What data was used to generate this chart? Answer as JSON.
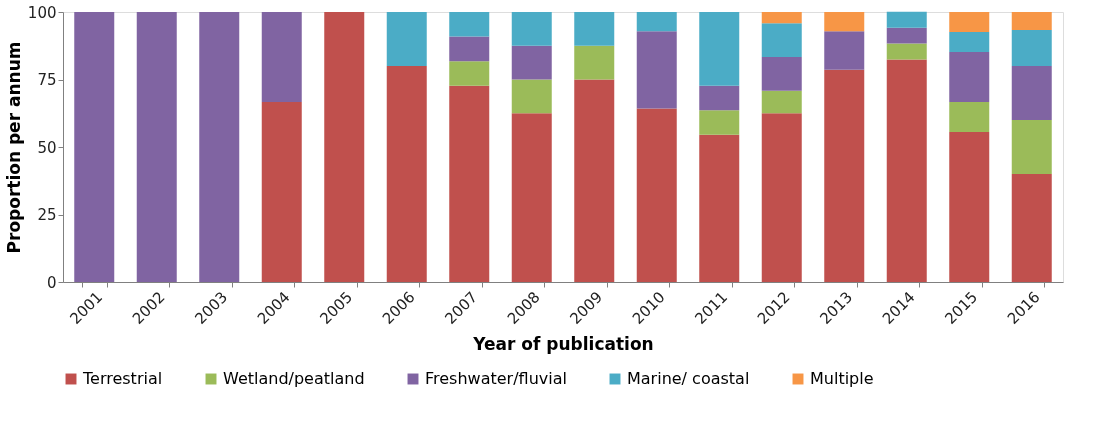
{
  "chart_data": {
    "type": "bar",
    "stacked": true,
    "xlabel": "Year of publication",
    "ylabel": "Proportion per annum",
    "categories": [
      "2001",
      "2002",
      "2003",
      "2004",
      "2005",
      "2006",
      "2007",
      "2008",
      "2009",
      "2010",
      "2011",
      "2012",
      "2013",
      "2014",
      "2015",
      "2016"
    ],
    "series": [
      {
        "name": "Terrestrial",
        "color": "#c0504d",
        "values": [
          0,
          0,
          0,
          66.7,
          100,
          80,
          72.7,
          62.5,
          75,
          64.3,
          54.5,
          62.5,
          78.6,
          82.4,
          55.6,
          40
        ]
      },
      {
        "name": "Wetland/peatland",
        "color": "#9bbb59",
        "values": [
          0,
          0,
          0,
          0,
          0,
          0,
          9.1,
          12.5,
          12.5,
          0,
          9.1,
          8.3,
          0,
          5.9,
          11.1,
          20
        ]
      },
      {
        "name": "Freshwater/fluvial",
        "color": "#8064a2",
        "values": [
          100,
          100,
          100,
          33.3,
          0,
          0,
          9.1,
          12.5,
          0,
          28.6,
          9.1,
          12.5,
          14.3,
          5.9,
          18.5,
          20
        ]
      },
      {
        "name": "Marine/ coastal",
        "color": "#4bacc6",
        "values": [
          0,
          0,
          0,
          0,
          0,
          20,
          9.1,
          12.5,
          12.5,
          7.1,
          27.3,
          12.5,
          0,
          5.9,
          7.4,
          13.3
        ]
      },
      {
        "name": "Multiple",
        "color": "#f79646",
        "values": [
          0,
          0,
          0,
          0,
          0,
          0,
          0,
          0,
          0,
          0,
          0,
          4.2,
          7.1,
          0,
          7.4,
          6.7
        ]
      }
    ],
    "ylim": [
      0,
      100
    ],
    "yticks": [
      0,
      25,
      50,
      75,
      100
    ],
    "grid": false,
    "legend": "bottom"
  }
}
